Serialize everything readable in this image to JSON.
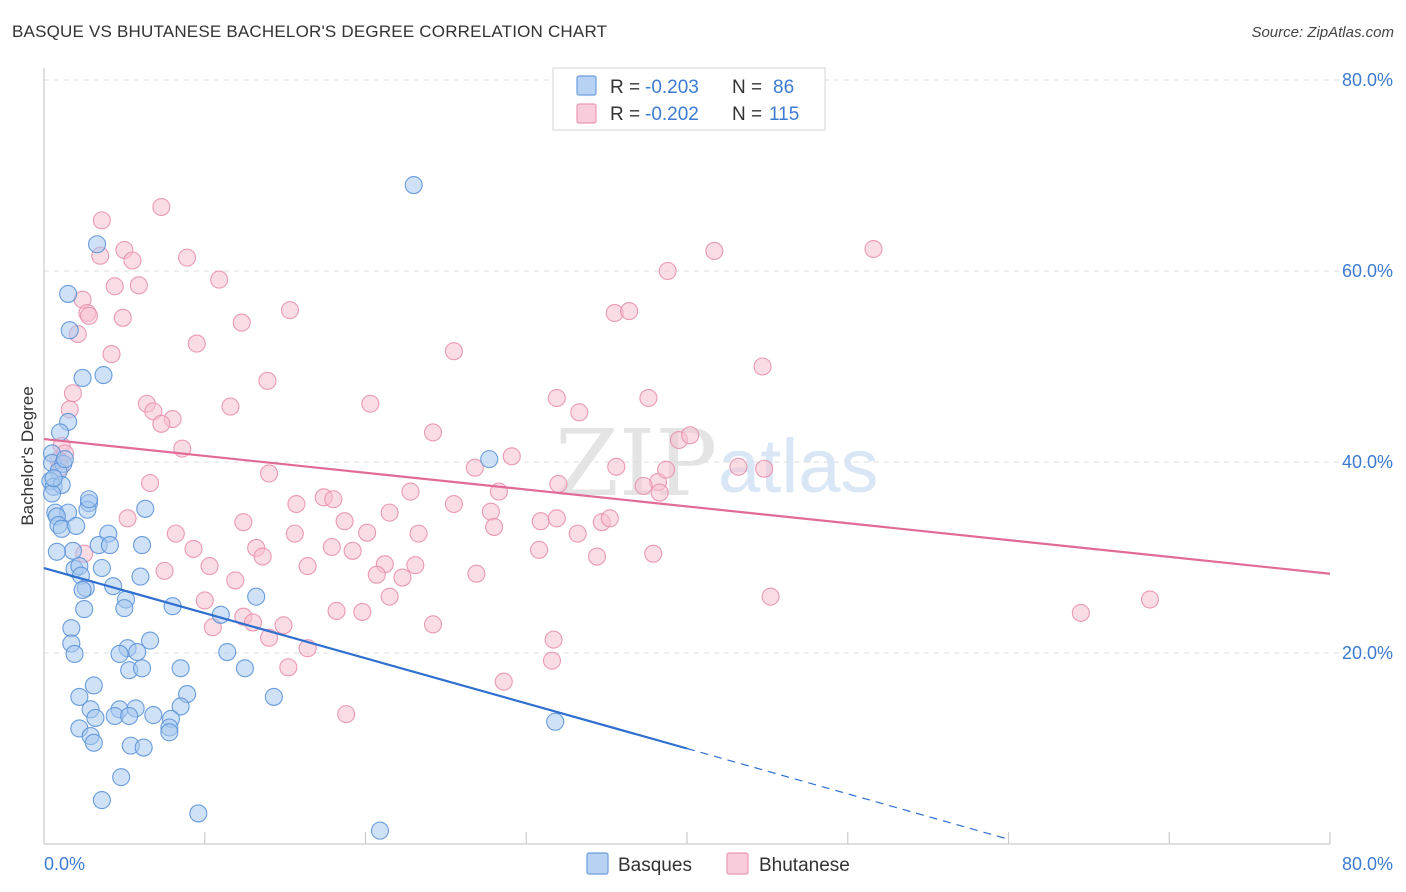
{
  "title": "BASQUE VS BHUTANESE BACHELOR'S DEGREE CORRELATION CHART",
  "source": "Source: ZipAtlas.com",
  "watermark": {
    "zip": "ZIP",
    "atlas": "atlas"
  },
  "legend": {
    "basque": {
      "r_label": "R =",
      "r_value": "-0.203",
      "n_label": "N =",
      "n_value": "86"
    },
    "bhutanese": {
      "r_label": "R =",
      "r_value": "-0.202",
      "n_label": "N =",
      "n_value": "115"
    }
  },
  "bottom_legend": {
    "basque": "Basques",
    "bhutanese": "Bhutanese"
  },
  "colors": {
    "basque_fill": "#a8c8ee",
    "basque_stroke": "#5b93d8",
    "basque_line": "#2f6fcf",
    "bhutanese_fill": "#f6c0d0",
    "bhutanese_stroke": "#e890ae",
    "bhutanese_line": "#e06b98",
    "tick": "#3d7bd1",
    "grid": "#dddddd"
  },
  "chart_data": {
    "type": "scatter",
    "title": "BASQUE VS BHUTANESE BACHELOR'S DEGREE CORRELATION CHART",
    "xlabel": "",
    "ylabel": "Bachelor's Degree",
    "xlim": [
      0,
      80
    ],
    "ylim": [
      0,
      80
    ],
    "x_tick_labels": [
      "0.0%",
      "80.0%"
    ],
    "y_ticks": [
      {
        "value": 20,
        "label": "20.0%"
      },
      {
        "value": 40,
        "label": "40.0%"
      },
      {
        "value": 60,
        "label": "60.0%"
      },
      {
        "value": 80,
        "label": "80.0%"
      }
    ],
    "series": [
      {
        "name": "Basques",
        "R": -0.203,
        "N": 86,
        "trend": {
          "x0": 0,
          "y0": 28.9,
          "x1": 40,
          "y1": 10.0,
          "dashed_to_x": 60,
          "dashed_to_y": 0.5
        },
        "points": [
          [
            23.0,
            69.0
          ],
          [
            3.3,
            62.8
          ],
          [
            1.5,
            57.6
          ],
          [
            1.6,
            53.8
          ],
          [
            2.4,
            48.8
          ],
          [
            3.7,
            49.1
          ],
          [
            1.5,
            44.2
          ],
          [
            1.0,
            43.1
          ],
          [
            0.5,
            40.9
          ],
          [
            0.5,
            39.9
          ],
          [
            1.2,
            39.8
          ],
          [
            0.9,
            39.0
          ],
          [
            0.4,
            38.0
          ],
          [
            0.6,
            37.4
          ],
          [
            1.1,
            37.6
          ],
          [
            0.5,
            36.7
          ],
          [
            2.8,
            35.7
          ],
          [
            6.3,
            35.1
          ],
          [
            0.7,
            34.7
          ],
          [
            1.5,
            34.7
          ],
          [
            0.8,
            34.3
          ],
          [
            2.7,
            35.0
          ],
          [
            0.9,
            33.4
          ],
          [
            1.1,
            33.0
          ],
          [
            2.0,
            33.3
          ],
          [
            4.0,
            32.5
          ],
          [
            3.4,
            31.3
          ],
          [
            4.1,
            31.3
          ],
          [
            6.1,
            31.3
          ],
          [
            1.8,
            30.7
          ],
          [
            0.8,
            30.6
          ],
          [
            3.6,
            28.9
          ],
          [
            1.9,
            28.8
          ],
          [
            2.2,
            29.1
          ],
          [
            2.3,
            28.1
          ],
          [
            4.3,
            27.0
          ],
          [
            2.6,
            26.8
          ],
          [
            2.4,
            26.6
          ],
          [
            6.0,
            28.0
          ],
          [
            13.2,
            25.9
          ],
          [
            5.1,
            25.6
          ],
          [
            5.0,
            24.7
          ],
          [
            2.5,
            24.6
          ],
          [
            8.0,
            24.9
          ],
          [
            11.0,
            24.0
          ],
          [
            1.7,
            22.6
          ],
          [
            6.6,
            21.3
          ],
          [
            1.7,
            21.0
          ],
          [
            5.2,
            20.5
          ],
          [
            5.8,
            20.1
          ],
          [
            4.7,
            19.9
          ],
          [
            11.4,
            20.1
          ],
          [
            1.9,
            19.9
          ],
          [
            5.3,
            18.2
          ],
          [
            6.1,
            18.4
          ],
          [
            8.5,
            18.4
          ],
          [
            12.5,
            18.4
          ],
          [
            3.1,
            16.6
          ],
          [
            2.2,
            15.4
          ],
          [
            8.9,
            15.7
          ],
          [
            14.3,
            15.4
          ],
          [
            2.9,
            14.1
          ],
          [
            4.7,
            14.1
          ],
          [
            5.7,
            14.2
          ],
          [
            4.4,
            13.4
          ],
          [
            5.3,
            13.4
          ],
          [
            8.5,
            14.4
          ],
          [
            3.2,
            13.2
          ],
          [
            6.8,
            13.5
          ],
          [
            7.9,
            13.1
          ],
          [
            7.8,
            12.2
          ],
          [
            2.2,
            12.1
          ],
          [
            31.8,
            12.8
          ],
          [
            7.8,
            11.7
          ],
          [
            2.9,
            11.3
          ],
          [
            3.1,
            10.6
          ],
          [
            5.4,
            10.3
          ],
          [
            6.2,
            10.1
          ],
          [
            4.8,
            7.0
          ],
          [
            3.6,
            4.6
          ],
          [
            9.6,
            3.2
          ],
          [
            20.9,
            1.4
          ],
          [
            27.7,
            40.3
          ],
          [
            1.3,
            40.3
          ],
          [
            0.6,
            38.3
          ],
          [
            2.8,
            36.1
          ]
        ]
      },
      {
        "name": "Bhutanese",
        "R": -0.202,
        "N": 115,
        "trend": {
          "x0": 0,
          "y0": 42.4,
          "x1": 80,
          "y1": 28.3
        },
        "points": [
          [
            7.3,
            66.7
          ],
          [
            3.6,
            65.3
          ],
          [
            5.0,
            62.2
          ],
          [
            3.5,
            61.6
          ],
          [
            5.5,
            61.1
          ],
          [
            8.9,
            61.4
          ],
          [
            10.9,
            59.1
          ],
          [
            5.9,
            58.5
          ],
          [
            4.4,
            58.4
          ],
          [
            2.4,
            57.0
          ],
          [
            2.7,
            55.6
          ],
          [
            2.8,
            55.3
          ],
          [
            4.9,
            55.1
          ],
          [
            12.3,
            54.6
          ],
          [
            15.3,
            55.9
          ],
          [
            2.1,
            53.4
          ],
          [
            9.5,
            52.4
          ],
          [
            4.2,
            51.3
          ],
          [
            25.5,
            51.6
          ],
          [
            13.9,
            48.5
          ],
          [
            1.8,
            47.2
          ],
          [
            6.4,
            46.1
          ],
          [
            11.6,
            45.8
          ],
          [
            20.3,
            46.1
          ],
          [
            6.8,
            45.3
          ],
          [
            1.6,
            45.5
          ],
          [
            8.0,
            44.5
          ],
          [
            7.3,
            44.0
          ],
          [
            24.2,
            43.1
          ],
          [
            1.1,
            41.7
          ],
          [
            8.6,
            41.4
          ],
          [
            1.3,
            40.9
          ],
          [
            0.9,
            40.2
          ],
          [
            1.0,
            39.4
          ],
          [
            41.7,
            62.1
          ],
          [
            51.6,
            62.3
          ],
          [
            38.8,
            60.0
          ],
          [
            35.5,
            55.6
          ],
          [
            36.4,
            55.8
          ],
          [
            44.7,
            50.0
          ],
          [
            31.9,
            46.7
          ],
          [
            37.6,
            46.7
          ],
          [
            33.3,
            45.2
          ],
          [
            29.1,
            40.6
          ],
          [
            26.8,
            39.4
          ],
          [
            35.6,
            39.5
          ],
          [
            38.2,
            37.9
          ],
          [
            39.5,
            42.3
          ],
          [
            37.3,
            37.5
          ],
          [
            38.3,
            36.8
          ],
          [
            40.2,
            42.8
          ],
          [
            44.8,
            39.3
          ],
          [
            43.2,
            39.5
          ],
          [
            38.7,
            39.2
          ],
          [
            14.0,
            38.8
          ],
          [
            6.6,
            37.8
          ],
          [
            22.8,
            36.9
          ],
          [
            28.3,
            36.9
          ],
          [
            32.0,
            37.7
          ],
          [
            17.4,
            36.3
          ],
          [
            18.0,
            36.1
          ],
          [
            15.7,
            35.6
          ],
          [
            25.5,
            35.6
          ],
          [
            21.5,
            34.7
          ],
          [
            27.8,
            34.8
          ],
          [
            12.4,
            33.7
          ],
          [
            18.7,
            33.8
          ],
          [
            30.9,
            33.8
          ],
          [
            31.9,
            34.1
          ],
          [
            34.7,
            33.7
          ],
          [
            35.2,
            34.1
          ],
          [
            8.2,
            32.5
          ],
          [
            15.6,
            32.5
          ],
          [
            20.1,
            32.6
          ],
          [
            23.3,
            32.5
          ],
          [
            33.2,
            32.5
          ],
          [
            28.0,
            33.2
          ],
          [
            13.2,
            31.0
          ],
          [
            9.3,
            30.9
          ],
          [
            17.9,
            31.1
          ],
          [
            19.2,
            30.7
          ],
          [
            30.8,
            30.8
          ],
          [
            34.4,
            30.1
          ],
          [
            37.9,
            30.4
          ],
          [
            13.6,
            30.1
          ],
          [
            2.5,
            30.4
          ],
          [
            10.3,
            29.1
          ],
          [
            16.4,
            29.1
          ],
          [
            21.2,
            29.3
          ],
          [
            23.1,
            29.2
          ],
          [
            26.9,
            28.3
          ],
          [
            7.5,
            28.6
          ],
          [
            11.9,
            27.6
          ],
          [
            20.7,
            28.2
          ],
          [
            22.3,
            27.9
          ],
          [
            10.0,
            25.5
          ],
          [
            21.5,
            25.9
          ],
          [
            18.2,
            24.4
          ],
          [
            19.8,
            24.3
          ],
          [
            12.4,
            23.8
          ],
          [
            13.0,
            23.2
          ],
          [
            14.9,
            22.9
          ],
          [
            10.5,
            22.7
          ],
          [
            24.2,
            23.0
          ],
          [
            14.0,
            21.6
          ],
          [
            31.7,
            21.4
          ],
          [
            16.4,
            20.5
          ],
          [
            45.2,
            25.9
          ],
          [
            64.5,
            24.2
          ],
          [
            68.8,
            25.6
          ],
          [
            31.6,
            19.2
          ],
          [
            15.2,
            18.5
          ],
          [
            28.6,
            17.0
          ],
          [
            18.8,
            13.6
          ],
          [
            5.2,
            34.1
          ]
        ]
      }
    ]
  }
}
